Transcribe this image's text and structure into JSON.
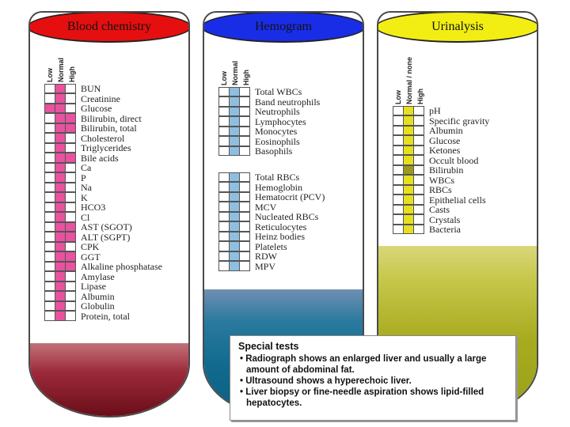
{
  "blood": {
    "title": "Blood chemistry",
    "columns": [
      "Low",
      "Normal",
      "High"
    ],
    "rows": [
      {
        "label": "BUN",
        "cells": [
          "",
          "fill",
          ""
        ]
      },
      {
        "label": "Creatinine",
        "cells": [
          "",
          "fill",
          ""
        ]
      },
      {
        "label": "Glucose",
        "cells": [
          "fill",
          "fill",
          ""
        ]
      },
      {
        "label": "Bilirubin, direct",
        "cells": [
          "",
          "fill",
          "fill"
        ]
      },
      {
        "label": "Bilirubin, total",
        "cells": [
          "",
          "fill",
          "fill"
        ]
      },
      {
        "label": "Cholesterol",
        "cells": [
          "",
          "fill",
          ""
        ]
      },
      {
        "label": "Triglycerides",
        "cells": [
          "",
          "fill",
          ""
        ]
      },
      {
        "label": "Bile acids",
        "cells": [
          "",
          "fill",
          "fill"
        ]
      },
      {
        "label": "Ca",
        "cells": [
          "",
          "fill",
          ""
        ]
      },
      {
        "label": "P",
        "cells": [
          "",
          "fill",
          ""
        ]
      },
      {
        "label": "Na",
        "cells": [
          "",
          "fill",
          ""
        ]
      },
      {
        "label": "K",
        "cells": [
          "",
          "fill",
          ""
        ]
      },
      {
        "label": "HCO3",
        "cells": [
          "",
          "fill",
          ""
        ]
      },
      {
        "label": "Cl",
        "cells": [
          "",
          "fill",
          ""
        ]
      },
      {
        "label": "AST (SGOT)",
        "cells": [
          "",
          "fill",
          "fill"
        ]
      },
      {
        "label": "ALT (SGPT)",
        "cells": [
          "",
          "fill",
          "fill"
        ]
      },
      {
        "label": "CPK",
        "cells": [
          "",
          "fill",
          ""
        ]
      },
      {
        "label": "GGT",
        "cells": [
          "",
          "fill",
          "fill"
        ]
      },
      {
        "label": "Alkaline phosphatase",
        "cells": [
          "",
          "fill",
          "fill"
        ]
      },
      {
        "label": "Amylase",
        "cells": [
          "",
          "fill",
          ""
        ]
      },
      {
        "label": "Lipase",
        "cells": [
          "",
          "fill",
          ""
        ]
      },
      {
        "label": "Albumin",
        "cells": [
          "",
          "fill",
          ""
        ]
      },
      {
        "label": "Globulin",
        "cells": [
          "",
          "fill",
          ""
        ]
      },
      {
        "label": "Protein, total",
        "cells": [
          "",
          "fill",
          ""
        ]
      }
    ]
  },
  "hemo": {
    "title": "Hemogram",
    "columns": [
      "Low",
      "Normal",
      "High"
    ],
    "group1": [
      {
        "label": "Total WBCs",
        "cells": [
          "",
          "fill",
          ""
        ]
      },
      {
        "label": "Band neutrophils",
        "cells": [
          "",
          "fill",
          ""
        ]
      },
      {
        "label": "Neutrophils",
        "cells": [
          "",
          "fill",
          ""
        ]
      },
      {
        "label": "Lymphocytes",
        "cells": [
          "",
          "fill",
          ""
        ]
      },
      {
        "label": "Monocytes",
        "cells": [
          "",
          "fill",
          ""
        ]
      },
      {
        "label": "Eosinophils",
        "cells": [
          "",
          "fill",
          ""
        ]
      },
      {
        "label": "Basophils",
        "cells": [
          "",
          "fill",
          ""
        ]
      }
    ],
    "group2": [
      {
        "label": "Total RBCs",
        "cells": [
          "",
          "fill",
          ""
        ]
      },
      {
        "label": "Hemoglobin",
        "cells": [
          "",
          "fill",
          ""
        ]
      },
      {
        "label": "Hematocrit (PCV)",
        "cells": [
          "",
          "fill",
          ""
        ]
      },
      {
        "label": "MCV",
        "cells": [
          "",
          "fill",
          ""
        ]
      },
      {
        "label": "Nucleated RBCs",
        "cells": [
          "",
          "fill",
          ""
        ]
      },
      {
        "label": "Reticulocytes",
        "cells": [
          "",
          "fill",
          ""
        ]
      },
      {
        "label": "Heinz bodies",
        "cells": [
          "",
          "fill",
          ""
        ]
      },
      {
        "label": "Platelets",
        "cells": [
          "",
          "fill",
          ""
        ]
      },
      {
        "label": "RDW",
        "cells": [
          "",
          "fill",
          ""
        ]
      },
      {
        "label": "MPV",
        "cells": [
          "",
          "fill",
          ""
        ]
      }
    ]
  },
  "urine": {
    "title": "Urinalysis",
    "columns": [
      "Low",
      "Normal / none",
      "High"
    ],
    "rows": [
      {
        "label": "pH",
        "cells": [
          "",
          "fill",
          ""
        ]
      },
      {
        "label": "Specific gravity",
        "cells": [
          "",
          "fill",
          ""
        ]
      },
      {
        "label": "Albumin",
        "cells": [
          "",
          "fill",
          ""
        ]
      },
      {
        "label": "Glucose",
        "cells": [
          "",
          "fill",
          ""
        ]
      },
      {
        "label": "Ketones",
        "cells": [
          "",
          "fill",
          ""
        ]
      },
      {
        "label": "Occult blood",
        "cells": [
          "",
          "fill",
          ""
        ]
      },
      {
        "label": "Bilirubin",
        "cells": [
          "",
          "olive",
          ""
        ]
      },
      {
        "label": "WBCs",
        "cells": [
          "",
          "fill",
          ""
        ]
      },
      {
        "label": "RBCs",
        "cells": [
          "",
          "fill",
          ""
        ]
      },
      {
        "label": "Epithelial cells",
        "cells": [
          "",
          "fill",
          ""
        ]
      },
      {
        "label": "Casts",
        "cells": [
          "",
          "fill",
          ""
        ]
      },
      {
        "label": "Crystals",
        "cells": [
          "",
          "fill",
          ""
        ]
      },
      {
        "label": "Bacteria",
        "cells": [
          "",
          "fill",
          ""
        ]
      }
    ]
  },
  "special": {
    "title": "Special tests",
    "items": [
      "• Radiograph shows an enlarged liver and usually a large amount of abdominal fat.",
      "• Ultrasound shows a hyperechoic liver.",
      "• Liver biopsy or fine-needle aspiration shows lipid-filled hepatocytes."
    ]
  },
  "colors": {
    "blood_cap": "#e60f0f",
    "hemo_cap": "#1a2de6",
    "urine_cap": "#f2ee13",
    "blood_mark": "#e8529f",
    "hemo_mark": "#8fbfe0",
    "urine_mark": "#e6e020"
  }
}
